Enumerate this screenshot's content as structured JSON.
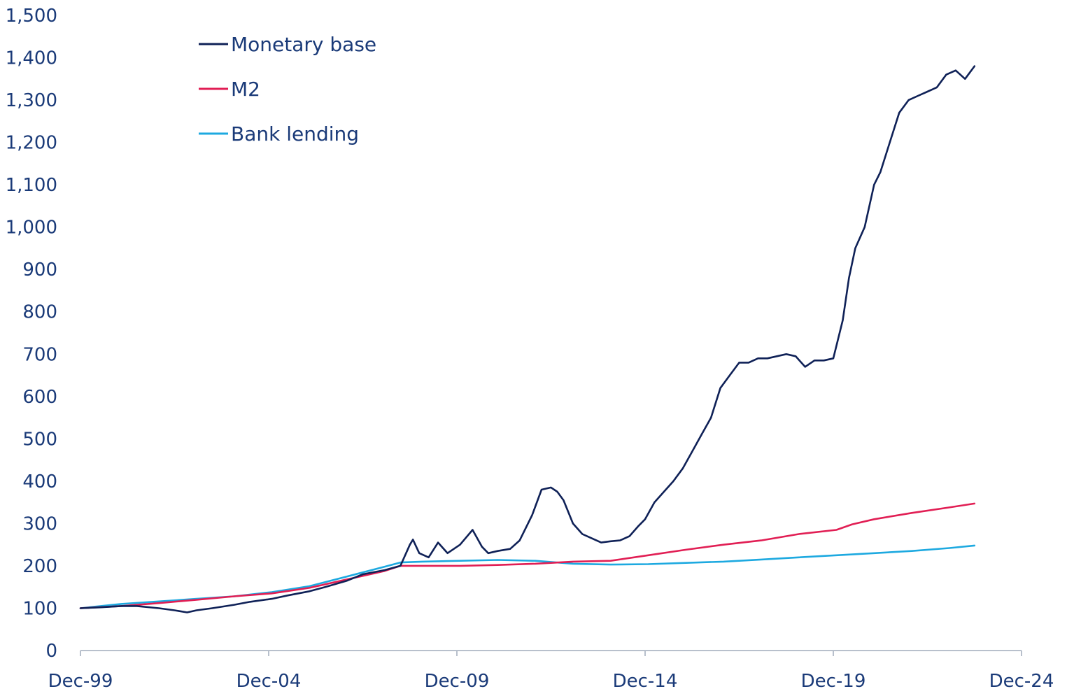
{
  "chart_data": {
    "type": "line",
    "title": "",
    "xlabel": "",
    "ylabel": "",
    "ylim": [
      0,
      1500
    ],
    "yticks": [
      0,
      100,
      200,
      300,
      400,
      500,
      600,
      700,
      800,
      900,
      1000,
      1100,
      1200,
      1300,
      1400,
      1500
    ],
    "ytick_labels": [
      "0",
      "100",
      "200",
      "300",
      "400",
      "500",
      "600",
      "700",
      "800",
      "900",
      "1,000",
      "1,100",
      "1,200",
      "1,300",
      "1,400",
      "1,500"
    ],
    "xlim": [
      "1999-12",
      "2024-12"
    ],
    "xticks": [
      "1999-12",
      "2004-12",
      "2009-12",
      "2014-12",
      "2019-12",
      "2024-12"
    ],
    "xtick_labels": [
      "Dec-99",
      "Dec-04",
      "Dec-09",
      "Dec-14",
      "Dec-19",
      "Dec-24"
    ],
    "grid": false,
    "legend": "top-left",
    "series": [
      {
        "name": "Monetary base",
        "color": "#0f2157",
        "x": [
          "1999-12",
          "2000-06",
          "2001-01",
          "2001-06",
          "2002-01",
          "2002-06",
          "2002-10",
          "2003-01",
          "2003-06",
          "2004-01",
          "2004-06",
          "2005-01",
          "2005-06",
          "2006-01",
          "2006-06",
          "2007-01",
          "2007-06",
          "2008-01",
          "2008-06",
          "2008-09",
          "2008-10",
          "2008-12",
          "2009-03",
          "2009-06",
          "2009-09",
          "2010-01",
          "2010-05",
          "2010-08",
          "2010-10",
          "2011-01",
          "2011-05",
          "2011-08",
          "2011-12",
          "2012-03",
          "2012-06",
          "2012-08",
          "2012-10",
          "2013-01",
          "2013-04",
          "2013-07",
          "2013-10",
          "2014-01",
          "2014-04",
          "2014-07",
          "2014-10",
          "2014-12",
          "2015-03",
          "2015-06",
          "2015-09",
          "2015-12",
          "2016-03",
          "2016-06",
          "2016-09",
          "2016-12",
          "2017-03",
          "2017-06",
          "2017-09",
          "2017-12",
          "2018-03",
          "2018-06",
          "2018-09",
          "2018-12",
          "2019-03",
          "2019-06",
          "2019-09",
          "2019-12",
          "2020-03",
          "2020-05",
          "2020-07",
          "2020-10",
          "2021-01",
          "2021-03",
          "2021-06",
          "2021-09",
          "2021-12",
          "2022-03",
          "2022-06",
          "2022-09",
          "2022-12",
          "2023-03",
          "2023-06",
          "2023-09"
        ],
        "y": [
          100,
          102,
          105,
          105,
          100,
          95,
          90,
          95,
          100,
          108,
          115,
          122,
          130,
          140,
          150,
          165,
          180,
          190,
          200,
          250,
          262,
          230,
          220,
          255,
          230,
          250,
          285,
          245,
          230,
          235,
          240,
          260,
          320,
          380,
          385,
          375,
          355,
          300,
          275,
          265,
          255,
          258,
          260,
          270,
          295,
          310,
          350,
          375,
          400,
          430,
          470,
          510,
          550,
          620,
          650,
          680,
          680,
          690,
          690,
          695,
          700,
          695,
          670,
          685,
          685,
          690,
          780,
          880,
          950,
          1000,
          1100,
          1130,
          1200,
          1270,
          1300,
          1310,
          1320,
          1330,
          1360,
          1370,
          1350,
          1380
        ]
      },
      {
        "name": "M2",
        "color": "#e11e54",
        "x": [
          "1999-12",
          "2001-01",
          "2002-01",
          "2003-01",
          "2004-01",
          "2005-01",
          "2006-01",
          "2007-01",
          "2008-01",
          "2008-06",
          "2009-01",
          "2010-01",
          "2011-01",
          "2012-01",
          "2013-01",
          "2014-01",
          "2015-01",
          "2016-01",
          "2017-01",
          "2018-01",
          "2019-01",
          "2020-01",
          "2020-06",
          "2021-01",
          "2022-01",
          "2023-01",
          "2023-09"
        ],
        "y": [
          100,
          105,
          112,
          120,
          128,
          135,
          148,
          168,
          188,
          200,
          200,
          200,
          202,
          205,
          210,
          212,
          225,
          238,
          250,
          260,
          275,
          285,
          298,
          310,
          325,
          338,
          347
        ]
      },
      {
        "name": "Bank lending",
        "color": "#1da9e0",
        "x": [
          "1999-12",
          "2001-01",
          "2002-01",
          "2003-01",
          "2004-01",
          "2005-01",
          "2006-01",
          "2007-01",
          "2008-01",
          "2008-06",
          "2009-01",
          "2010-01",
          "2011-01",
          "2012-01",
          "2013-01",
          "2014-01",
          "2015-01",
          "2016-01",
          "2017-01",
          "2018-01",
          "2019-01",
          "2020-01",
          "2021-01",
          "2022-01",
          "2023-01",
          "2023-09"
        ],
        "y": [
          100,
          110,
          116,
          122,
          128,
          138,
          152,
          175,
          198,
          208,
          210,
          212,
          214,
          212,
          205,
          203,
          204,
          207,
          210,
          215,
          220,
          225,
          230,
          235,
          242,
          248
        ]
      }
    ]
  }
}
